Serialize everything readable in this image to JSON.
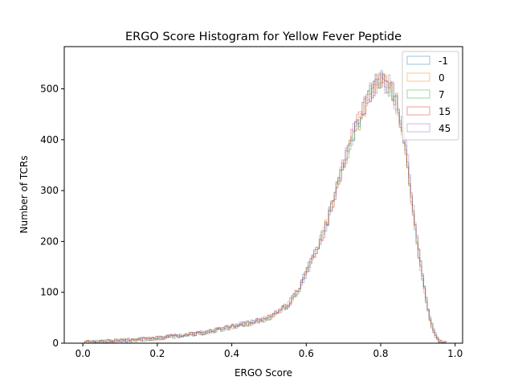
{
  "chart_data": {
    "type": "histogram",
    "title": "ERGO Score Histogram for Yellow Fever Peptide",
    "xlabel": "ERGO Score",
    "ylabel": "Number of TCRs",
    "xlim": [
      -0.05,
      1.02
    ],
    "ylim": [
      0,
      583
    ],
    "xticks": [
      0.0,
      0.2,
      0.4,
      0.6,
      0.8,
      1.0
    ],
    "xtick_labels": [
      "0.0",
      "0.2",
      "0.4",
      "0.6",
      "0.8",
      "1.0"
    ],
    "yticks": [
      0,
      100,
      200,
      300,
      400,
      500
    ],
    "ytick_labels": [
      "0",
      "100",
      "200",
      "300",
      "400",
      "500"
    ],
    "legend": {
      "position": "top-right"
    },
    "profile_x": [
      0.0,
      0.05,
      0.1,
      0.15,
      0.2,
      0.25,
      0.3,
      0.35,
      0.4,
      0.45,
      0.5,
      0.55,
      0.58,
      0.6,
      0.62,
      0.65,
      0.68,
      0.7,
      0.72,
      0.74,
      0.76,
      0.78,
      0.8,
      0.82,
      0.84,
      0.86,
      0.87,
      0.88,
      0.89,
      0.9,
      0.91,
      0.92,
      0.93,
      0.94,
      0.95,
      0.96,
      0.97
    ],
    "profile_y": [
      1,
      3,
      5,
      7,
      10,
      14,
      18,
      24,
      32,
      40,
      50,
      75,
      105,
      140,
      170,
      225,
      300,
      350,
      400,
      435,
      470,
      500,
      525,
      510,
      480,
      420,
      370,
      300,
      250,
      190,
      140,
      95,
      55,
      28,
      12,
      4,
      0
    ],
    "series": [
      {
        "name": "-1",
        "color": "#1f77b4",
        "seed": 11
      },
      {
        "name": "0",
        "color": "#ff7f0e",
        "seed": 23
      },
      {
        "name": "7",
        "color": "#2ca02c",
        "seed": 37
      },
      {
        "name": "15",
        "color": "#d62728",
        "seed": 41
      },
      {
        "name": "45",
        "color": "#9467bd",
        "seed": 53
      }
    ]
  }
}
